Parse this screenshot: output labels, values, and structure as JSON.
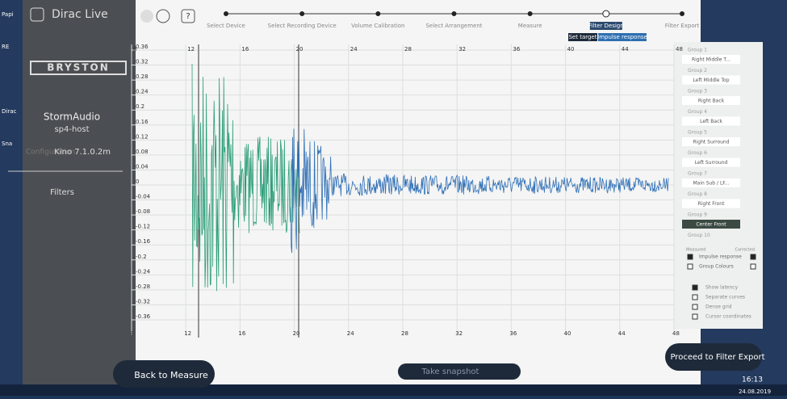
{
  "desktop": {
    "left_labels": [
      "Papi",
      "RE",
      "Dirac",
      "Sna"
    ]
  },
  "sidebar": {
    "app_name": "Dirac Live",
    "brand": "BRYSTON",
    "device": "StormAudio",
    "host": "sp4-host",
    "configuration_label": "Configuration",
    "configuration": "Kino 7.1.0.2m",
    "filters": "Filters"
  },
  "header": {
    "help": "?",
    "steps": [
      "Select Device",
      "Select Recording Device",
      "Volume Calibration",
      "Select Arrangement",
      "Measure",
      "Filter Design",
      "Filter Export"
    ],
    "buttons": [
      "Set target",
      "Impulse response"
    ]
  },
  "plot": {
    "xlim": [
      8,
      48
    ],
    "ylim": [
      -0.36,
      0.36
    ],
    "xticks": [
      8,
      12,
      16,
      20,
      24,
      28,
      32,
      36,
      40,
      44,
      48
    ],
    "yticks": [
      0.36,
      0.32,
      0.28,
      0.24,
      0.2,
      0.16,
      0.12,
      0.08,
      0.04,
      0,
      -0.04,
      -0.08,
      -0.12,
      -0.16,
      -0.2,
      -0.24,
      -0.28,
      -0.32,
      -0.36
    ],
    "grid": true
  },
  "groups": [
    {
      "group": "Group 1",
      "channel": "Right Middle T..."
    },
    {
      "group": "Group 2",
      "channel": "Left Middle Top"
    },
    {
      "group": "Group 3",
      "channel": "Right Back"
    },
    {
      "group": "Group 4",
      "channel": "Left Back"
    },
    {
      "group": "Group 5",
      "channel": "Right Surround"
    },
    {
      "group": "Group 6",
      "channel": "Left Surround"
    },
    {
      "group": "Group 7",
      "channel": "Main Sub / LF..."
    },
    {
      "group": "Group 8",
      "channel": "Right Front"
    },
    {
      "group": "Group 9",
      "channel": "Center Front"
    },
    {
      "group": "Group 10"
    }
  ],
  "options": {
    "headers": [
      "Measured",
      "Corrected"
    ],
    "curve_checks": [
      "Impulse response",
      "Group Colours"
    ],
    "view_checks": [
      "Show latency",
      "Separate curves",
      "Dense grid",
      "Cursor coordinates"
    ]
  },
  "footer": {
    "back": "Back to Measure",
    "snapshot": "Take snapshot",
    "proceed": "Proceed to Filter Export"
  },
  "taskbar": {
    "time": "16:13",
    "date": "24.08.2019"
  }
}
